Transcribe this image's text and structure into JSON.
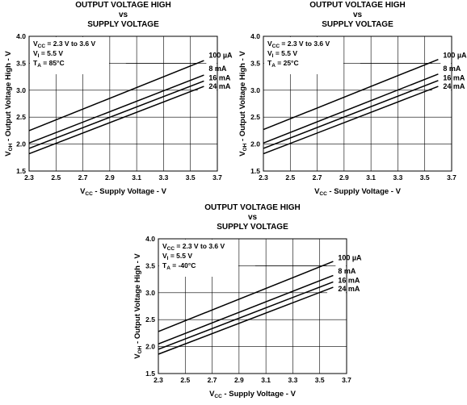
{
  "chart_data": [
    {
      "type": "line",
      "title": "OUTPUT VOLTAGE HIGH",
      "title_line2": "vs",
      "title_line3": "SUPPLY VOLTAGE",
      "xlabel": {
        "main": "V",
        "sub": "CC",
        "rest": " - Supply Voltage - V"
      },
      "ylabel": {
        "main": "V",
        "sub": "OH",
        "rest": " - Output Voltage High - V"
      },
      "xlim": [
        2.3,
        3.7
      ],
      "ylim": [
        1.5,
        4.0
      ],
      "xticks": [
        "2.3",
        "2.5",
        "2.7",
        "2.9",
        "3.1",
        "3.3",
        "3.5",
        "3.7"
      ],
      "yticks": [
        "1.5",
        "2.0",
        "2.5",
        "3.0",
        "3.5",
        "4.0"
      ],
      "grid": true,
      "conditions": [
        {
          "main": "V",
          "sub": "CC",
          "rest": " = 2.3 V to 3.6 V"
        },
        {
          "main": "V",
          "sub": "I",
          "rest": " = 5.5 V"
        },
        {
          "main": "T",
          "sub": "A",
          "rest": " = 85°C"
        }
      ],
      "series": [
        {
          "name": "100 µA",
          "x": [
            2.3,
            3.6
          ],
          "y": [
            2.25,
            3.55
          ]
        },
        {
          "name": "8 mA",
          "x": [
            2.3,
            3.6
          ],
          "y": [
            2.02,
            3.28
          ]
        },
        {
          "name": "16 mA",
          "x": [
            2.3,
            3.6
          ],
          "y": [
            1.92,
            3.17
          ]
        },
        {
          "name": "24 mA",
          "x": [
            2.3,
            3.6
          ],
          "y": [
            1.82,
            3.07
          ]
        }
      ]
    },
    {
      "type": "line",
      "title": "OUTPUT VOLTAGE HIGH",
      "title_line2": "vs",
      "title_line3": "SUPPLY VOLTAGE",
      "xlabel": {
        "main": "V",
        "sub": "CC",
        "rest": " - Supply Voltage - V"
      },
      "ylabel": {
        "main": "V",
        "sub": "OH",
        "rest": " - Output Voltage High - V"
      },
      "xlim": [
        2.3,
        3.7
      ],
      "ylim": [
        1.5,
        4.0
      ],
      "xticks": [
        "2.3",
        "2.5",
        "2.7",
        "2.9",
        "3.1",
        "3.3",
        "3.5",
        "3.7"
      ],
      "yticks": [
        "1.5",
        "2.0",
        "2.5",
        "3.0",
        "3.5",
        "4.0"
      ],
      "grid": true,
      "conditions": [
        {
          "main": "V",
          "sub": "CC",
          "rest": " = 2.3 V to 3.6 V"
        },
        {
          "main": "V",
          "sub": "I",
          "rest": " = 5.5 V"
        },
        {
          "main": "T",
          "sub": "A",
          "rest": " = 25°C"
        }
      ],
      "series": [
        {
          "name": "100 µA",
          "x": [
            2.3,
            3.6
          ],
          "y": [
            2.27,
            3.57
          ]
        },
        {
          "name": "8 mA",
          "x": [
            2.3,
            3.6
          ],
          "y": [
            2.02,
            3.3
          ]
        },
        {
          "name": "16 mA",
          "x": [
            2.3,
            3.6
          ],
          "y": [
            1.92,
            3.18
          ]
        },
        {
          "name": "24 mA",
          "x": [
            2.3,
            3.6
          ],
          "y": [
            1.82,
            3.07
          ]
        }
      ]
    },
    {
      "type": "line",
      "title": "OUTPUT VOLTAGE HIGH",
      "title_line2": "vs",
      "title_line3": "SUPPLY VOLTAGE",
      "xlabel": {
        "main": "V",
        "sub": "CC",
        "rest": " - Supply Voltage - V"
      },
      "ylabel": {
        "main": "V",
        "sub": "OH",
        "rest": " - Output Voltage High - V"
      },
      "xlim": [
        2.3,
        3.7
      ],
      "ylim": [
        1.5,
        4.0
      ],
      "xticks": [
        "2.3",
        "2.5",
        "2.7",
        "2.9",
        "3.1",
        "3.3",
        "3.5",
        "3.7"
      ],
      "yticks": [
        "1.5",
        "2.0",
        "2.5",
        "3.0",
        "3.5",
        "4.0"
      ],
      "grid": true,
      "conditions": [
        {
          "main": "V",
          "sub": "CC",
          "rest": " = 2.3 V to 3.6 V"
        },
        {
          "main": "V",
          "sub": "I",
          "rest": " = 5.5 V"
        },
        {
          "main": "T",
          "sub": "A",
          "rest": " = -40°C"
        }
      ],
      "series": [
        {
          "name": "100 µA",
          "x": [
            2.3,
            3.6
          ],
          "y": [
            2.28,
            3.58
          ]
        },
        {
          "name": "8 mA",
          "x": [
            2.3,
            3.6
          ],
          "y": [
            2.05,
            3.32
          ]
        },
        {
          "name": "16 mA",
          "x": [
            2.3,
            3.6
          ],
          "y": [
            1.95,
            3.2
          ]
        },
        {
          "name": "24 mA",
          "x": [
            2.3,
            3.6
          ],
          "y": [
            1.86,
            3.1
          ]
        }
      ]
    }
  ]
}
